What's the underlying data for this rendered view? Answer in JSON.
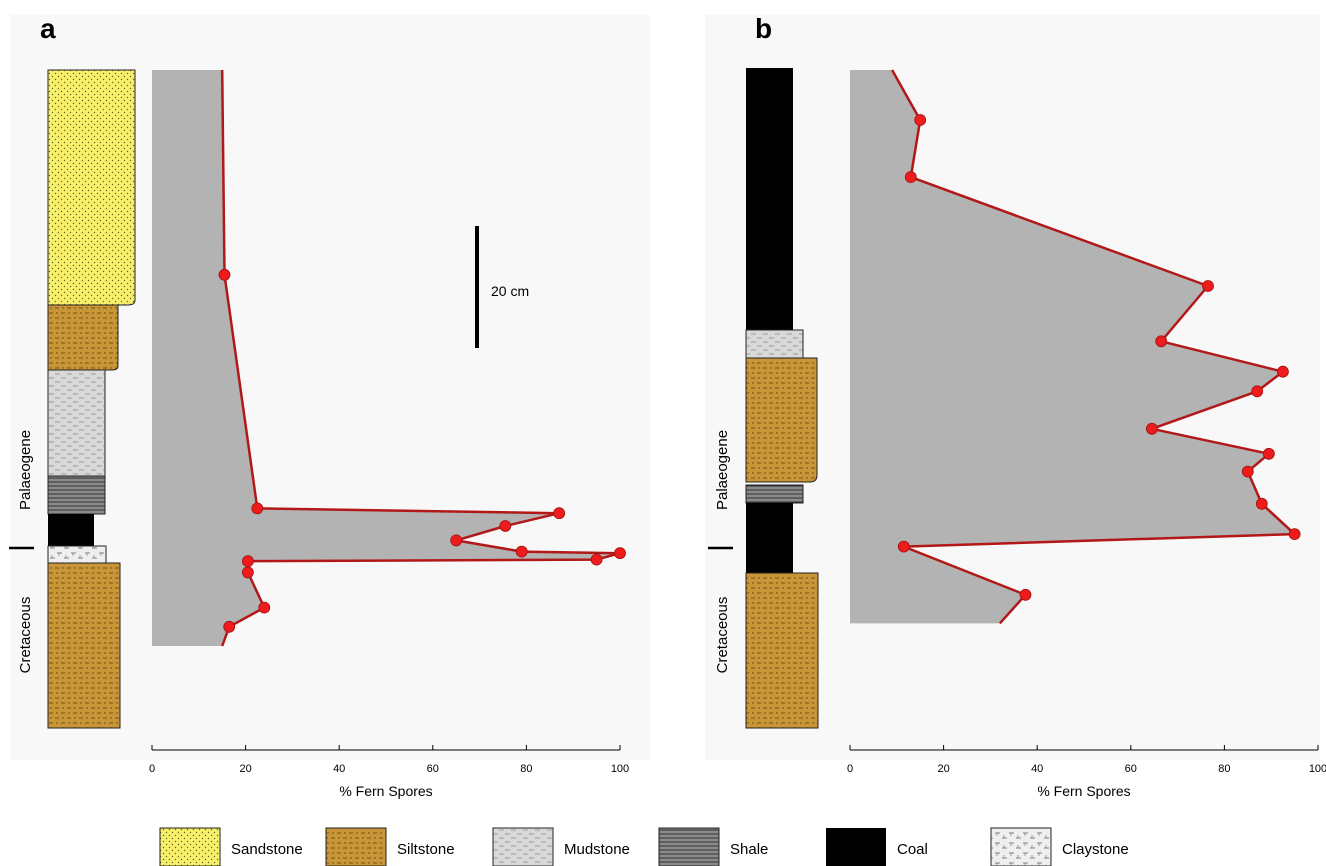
{
  "figure": {
    "panel_a_label": "a",
    "panel_b_label": "b",
    "scale_bar_label": "20 cm",
    "era_upper": "Palaeogene",
    "era_lower": "Cretaceous"
  },
  "legend": [
    {
      "key": "sandstone",
      "label": "Sandstone"
    },
    {
      "key": "siltstone",
      "label": "Siltstone"
    },
    {
      "key": "mudstone",
      "label": "Mudstone"
    },
    {
      "key": "shale",
      "label": "Shale"
    },
    {
      "key": "coal",
      "label": "Coal"
    },
    {
      "key": "claystone",
      "label": "Claystone"
    }
  ],
  "colors": {
    "sandstone": "#f7f06a",
    "siltstone": "#c99637",
    "mudstone": "#d9d9d9",
    "shale": "#7d7d7d",
    "coal": "#000000",
    "claystone": "#efefef",
    "fill": "#b3b3b3",
    "line": "#b21818",
    "marker": "#ee1c1c",
    "panel_bg": "#f8f8f8"
  },
  "chart_data": [
    {
      "panel": "a",
      "type": "area",
      "xlabel": "% Fern Spores",
      "xlim": [
        0,
        100
      ],
      "xticks": [
        0,
        20,
        40,
        60,
        80,
        100
      ],
      "depth_unit": "cm from top of section",
      "samples": [
        {
          "depth": 0,
          "value": 15,
          "marker": false
        },
        {
          "depth": 64,
          "value": 15.5,
          "marker": true
        },
        {
          "depth": 137,
          "value": 22.5,
          "marker": true
        },
        {
          "depth": 138.5,
          "value": 87,
          "marker": true
        },
        {
          "depth": 142.5,
          "value": 75.5,
          "marker": true
        },
        {
          "depth": 147,
          "value": 65,
          "marker": true
        },
        {
          "depth": 150.5,
          "value": 79,
          "marker": true
        },
        {
          "depth": 151,
          "value": 100,
          "marker": true
        },
        {
          "depth": 153,
          "value": 95,
          "marker": true
        },
        {
          "depth": 153.5,
          "value": 20.5,
          "marker": true
        },
        {
          "depth": 157,
          "value": 20.5,
          "marker": true
        },
        {
          "depth": 168,
          "value": 24,
          "marker": true
        },
        {
          "depth": 174,
          "value": 16.5,
          "marker": true
        },
        {
          "depth": 180,
          "value": 15,
          "marker": false
        }
      ]
    },
    {
      "panel": "b",
      "type": "area",
      "xlabel": "% Fern Spores",
      "xlim": [
        0,
        100
      ],
      "xticks": [
        0,
        20,
        40,
        60,
        80,
        100
      ],
      "depth_unit": "cm from top of section",
      "samples": [
        {
          "depth": 0,
          "value": 9,
          "marker": false
        },
        {
          "depth": 14,
          "value": 15,
          "marker": true
        },
        {
          "depth": 30,
          "value": 13,
          "marker": true
        },
        {
          "depth": 60.5,
          "value": 76.5,
          "marker": true
        },
        {
          "depth": 76,
          "value": 66.5,
          "marker": true
        },
        {
          "depth": 84.5,
          "value": 92.5,
          "marker": true
        },
        {
          "depth": 90,
          "value": 87,
          "marker": true
        },
        {
          "depth": 100.5,
          "value": 64.5,
          "marker": true
        },
        {
          "depth": 107.5,
          "value": 89.5,
          "marker": true
        },
        {
          "depth": 112.5,
          "value": 85,
          "marker": true
        },
        {
          "depth": 121.5,
          "value": 88,
          "marker": true
        },
        {
          "depth": 130,
          "value": 95,
          "marker": true
        },
        {
          "depth": 133.5,
          "value": 11.5,
          "marker": true
        },
        {
          "depth": 147,
          "value": 37.5,
          "marker": true
        },
        {
          "depth": 155,
          "value": 32,
          "marker": false
        }
      ]
    }
  ]
}
